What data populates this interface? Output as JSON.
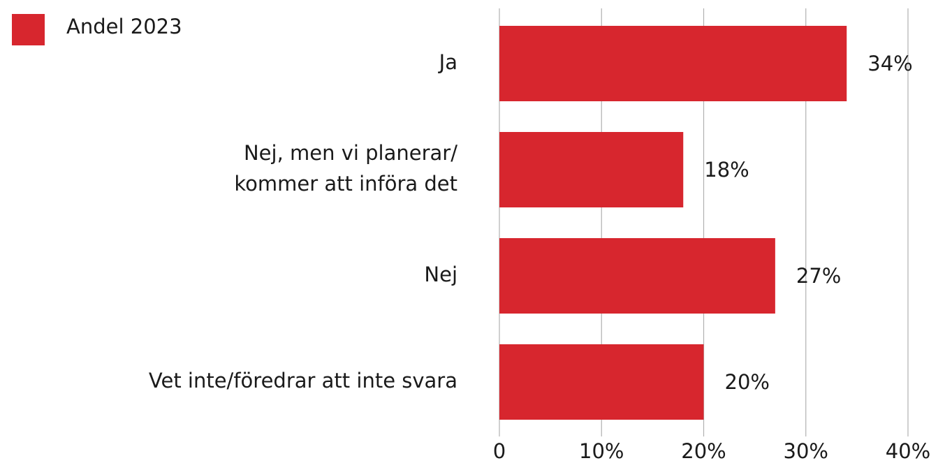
{
  "chart_data": {
    "type": "bar",
    "orientation": "horizontal",
    "legend": "Andel 2023",
    "categories": [
      "Ja",
      "Nej, men vi planerar/\nkommer att införa det",
      "Nej",
      "Vet inte/föredrar att inte svara"
    ],
    "values": [
      34,
      18,
      27,
      20
    ],
    "value_labels": [
      "34%",
      "18%",
      "27%",
      "20%"
    ],
    "color": "#d7262e",
    "xlim": [
      0,
      40
    ],
    "xticks": [
      0,
      {
        "value": 10,
        "label": "10%"
      },
      {
        "value": 20,
        "label": "20%"
      },
      {
        "value": 30,
        "label": "30%"
      },
      {
        "value": 40,
        "label": "40%"
      }
    ],
    "grid": true
  }
}
